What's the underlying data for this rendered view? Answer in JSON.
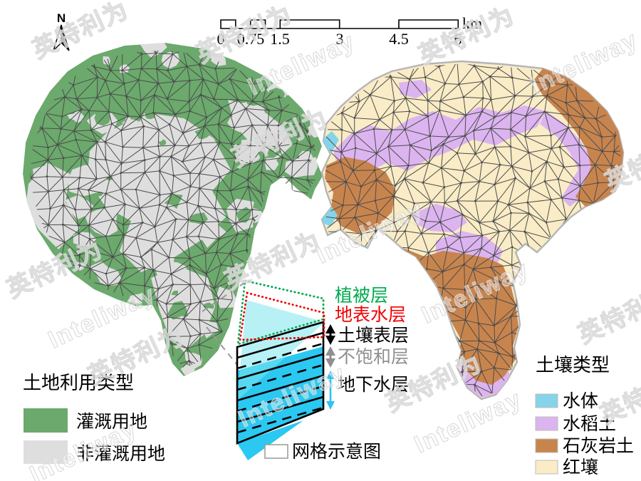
{
  "figure": {
    "north_label": "N",
    "scalebar": {
      "ticks": [
        "0",
        "0.75",
        "1.5",
        "3",
        "4.5",
        "6"
      ],
      "unit": "km"
    },
    "watermark": {
      "texts": [
        "英特利为",
        "Inteliway"
      ],
      "color": "#d8d8d8"
    },
    "left_map": {
      "legend_title": "土地利用类型",
      "mesh_color": "#4c4c4c",
      "items": [
        {
          "label": "灌溉用地",
          "color": "#6ba96c"
        },
        {
          "label": "非灌溉用地",
          "color": "#dedede"
        }
      ]
    },
    "right_map": {
      "legend_title": "土壤类型",
      "mesh_color": "#4c4c4c",
      "outline_color": "#b5b5b5",
      "items": [
        {
          "label": "水体",
          "color": "#85d4e9"
        },
        {
          "label": "水稻土",
          "color": "#dcb4f0"
        },
        {
          "label": "石灰岩土",
          "color": "#c8844d"
        },
        {
          "label": "红壤",
          "color": "#f9ecc6"
        }
      ]
    },
    "schematic": {
      "layers": [
        {
          "label": "植被层",
          "color": "#00a94f"
        },
        {
          "label": "地表水层",
          "color": "#f20000"
        },
        {
          "label": "土壤表层",
          "color": "#000000"
        },
        {
          "label": "不饱和层",
          "color": "#8f8f8f"
        },
        {
          "label": "地下水层",
          "color": "#000000"
        }
      ],
      "groundwater_fill": "#2bc8f1",
      "plane_fill": "#7ce6ef",
      "groundwater_arrow": "#2cc3ee",
      "grid_label": "网格示意图"
    }
  }
}
